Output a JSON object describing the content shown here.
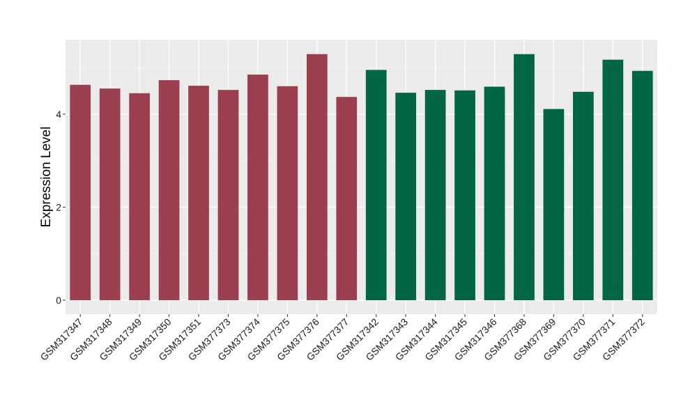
{
  "chart_data": {
    "type": "bar",
    "title": "",
    "xlabel": "",
    "ylabel": "Expression Level",
    "ylim": [
      -0.3,
      5.6
    ],
    "yticks": [
      0,
      2,
      4
    ],
    "grid": true,
    "background": "#ebebeb",
    "categories": [
      "GSM317347",
      "GSM317348",
      "GSM317349",
      "GSM317350",
      "GSM317351",
      "GSM377373",
      "GSM377374",
      "GSM377375",
      "GSM377376",
      "GSM377377",
      "GSM317342",
      "GSM317343",
      "GSM317344",
      "GSM317345",
      "GSM317346",
      "GSM377368",
      "GSM377369",
      "GSM377370",
      "GSM377371",
      "GSM377372"
    ],
    "values": [
      4.63,
      4.55,
      4.45,
      4.73,
      4.61,
      4.52,
      4.85,
      4.6,
      5.29,
      4.37,
      4.95,
      4.46,
      4.52,
      4.51,
      4.59,
      5.29,
      4.11,
      4.48,
      5.17,
      4.93
    ],
    "bar_colors": [
      "#9b3e4e",
      "#9b3e4e",
      "#9b3e4e",
      "#9b3e4e",
      "#9b3e4e",
      "#9b3e4e",
      "#9b3e4e",
      "#9b3e4e",
      "#9b3e4e",
      "#9b3e4e",
      "#006644",
      "#006644",
      "#006644",
      "#006644",
      "#006644",
      "#006644",
      "#006644",
      "#006644",
      "#006644",
      "#006644"
    ]
  }
}
